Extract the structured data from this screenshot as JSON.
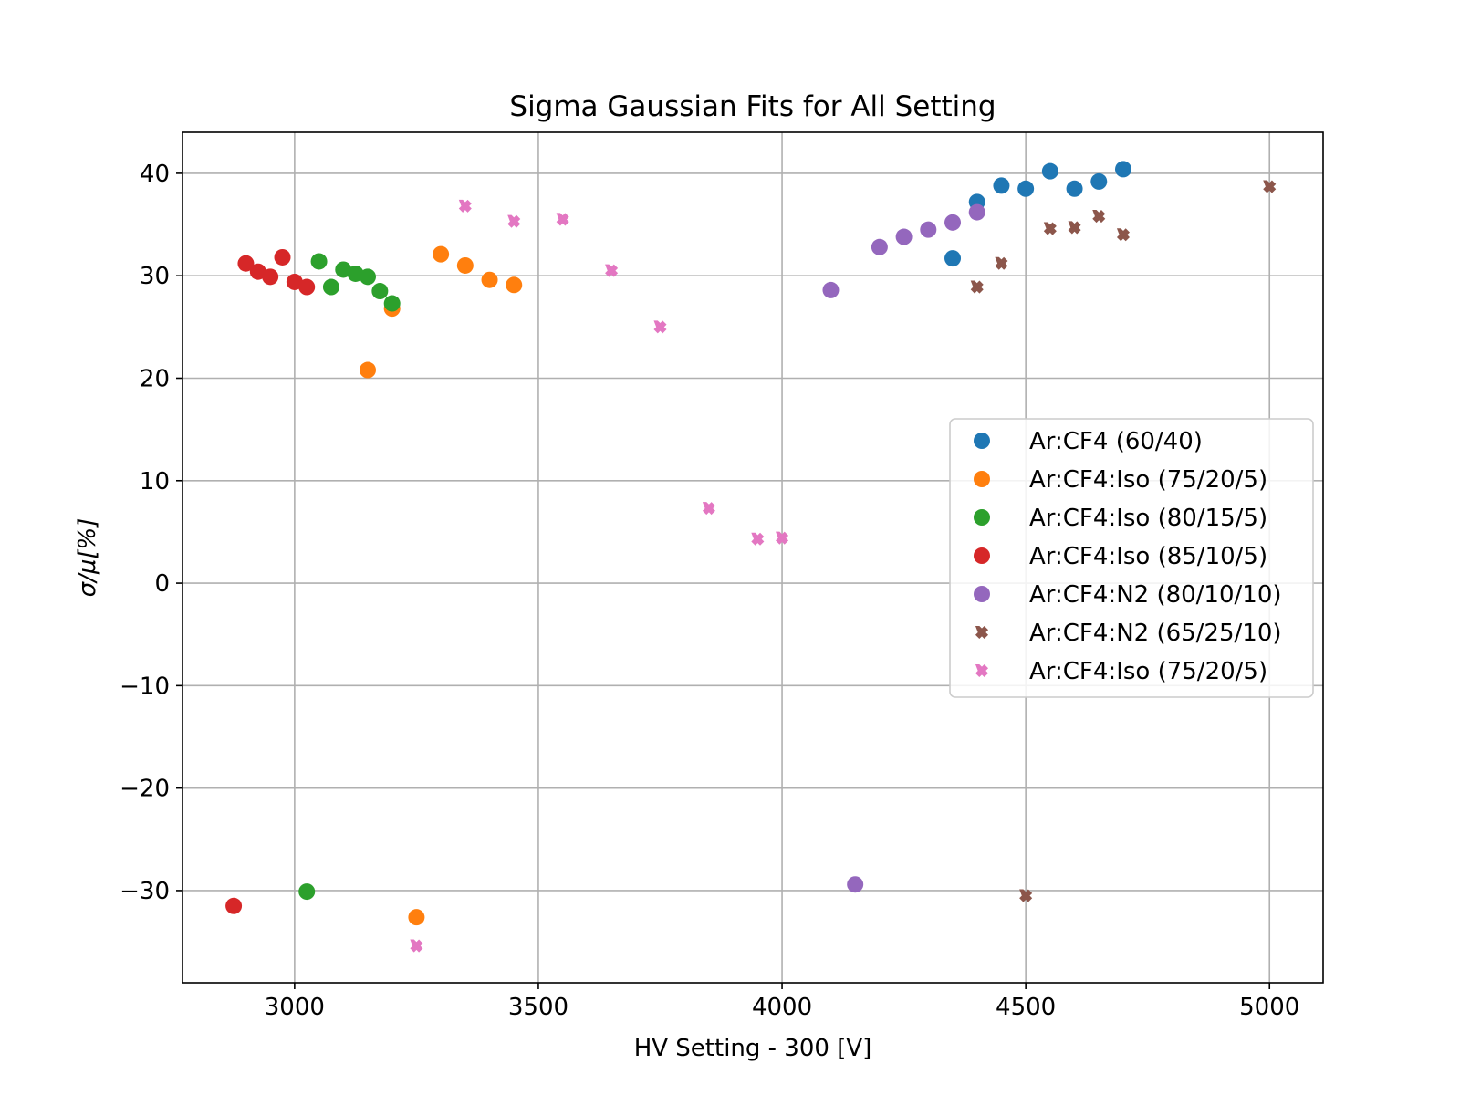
{
  "chart_data": {
    "type": "scatter",
    "title": "Sigma Gaussian Fits for All Setting",
    "xlabel": "HV Setting - 300 [V]",
    "ylabel": "σ/μ[%]",
    "xlim": [
      2770,
      5110
    ],
    "ylim": [
      -39,
      44
    ],
    "xticks": [
      3000,
      3500,
      4000,
      4500,
      5000
    ],
    "yticks": [
      -30,
      -20,
      -10,
      0,
      10,
      20,
      30,
      40
    ],
    "ytick_labels": [
      "−30",
      "−20",
      "−10",
      "0",
      "10",
      "20",
      "30",
      "40"
    ],
    "grid": true,
    "legend_position": "center-right",
    "series": [
      {
        "name": "Ar:CF4 (60/40)",
        "marker": "circle",
        "color": "#1f77b4",
        "points": [
          [
            4350,
            31.7
          ],
          [
            4400,
            37.2
          ],
          [
            4450,
            38.8
          ],
          [
            4500,
            38.5
          ],
          [
            4550,
            40.2
          ],
          [
            4600,
            38.5
          ],
          [
            4650,
            39.2
          ],
          [
            4700,
            40.4
          ]
        ]
      },
      {
        "name": "Ar:CF4:Iso (75/20/5)",
        "marker": "circle",
        "color": "#ff7f0e",
        "points": [
          [
            3150,
            20.8
          ],
          [
            3200,
            26.8
          ],
          [
            3250,
            -32.6
          ],
          [
            3300,
            32.1
          ],
          [
            3350,
            31.0
          ],
          [
            3400,
            29.6
          ],
          [
            3450,
            29.1
          ]
        ]
      },
      {
        "name": "Ar:CF4:Iso (80/15/5)",
        "marker": "circle",
        "color": "#2ca02c",
        "points": [
          [
            3025,
            -30.1
          ],
          [
            3050,
            31.4
          ],
          [
            3075,
            28.9
          ],
          [
            3100,
            30.6
          ],
          [
            3125,
            30.2
          ],
          [
            3150,
            29.9
          ],
          [
            3175,
            28.5
          ],
          [
            3200,
            27.3
          ]
        ]
      },
      {
        "name": "Ar:CF4:Iso (85/10/5)",
        "marker": "circle",
        "color": "#d62728",
        "points": [
          [
            2875,
            -31.5
          ],
          [
            2900,
            31.2
          ],
          [
            2925,
            30.4
          ],
          [
            2950,
            29.9
          ],
          [
            2975,
            31.8
          ],
          [
            3000,
            29.4
          ],
          [
            3025,
            28.9
          ]
        ]
      },
      {
        "name": "Ar:CF4:N2 (80/10/10)",
        "marker": "circle",
        "color": "#9467bd",
        "points": [
          [
            4100,
            28.6
          ],
          [
            4150,
            -29.4
          ],
          [
            4200,
            32.8
          ],
          [
            4250,
            33.8
          ],
          [
            4300,
            34.5
          ],
          [
            4350,
            35.2
          ],
          [
            4400,
            36.2
          ]
        ]
      },
      {
        "name": "Ar:CF4:N2 (65/25/10)",
        "marker": "x",
        "color": "#8c564b",
        "points": [
          [
            4400,
            28.9
          ],
          [
            4450,
            31.2
          ],
          [
            4500,
            -30.5
          ],
          [
            4550,
            34.6
          ],
          [
            4600,
            34.7
          ],
          [
            4650,
            35.8
          ],
          [
            4700,
            34.0
          ],
          [
            5000,
            38.7
          ]
        ]
      },
      {
        "name": "Ar:CF4:Iso (75/20/5)",
        "marker": "x",
        "color": "#e377c2",
        "points": [
          [
            3250,
            -35.4
          ],
          [
            3350,
            36.8
          ],
          [
            3450,
            35.3
          ],
          [
            3550,
            35.5
          ],
          [
            3650,
            30.5
          ],
          [
            3750,
            25.0
          ],
          [
            3850,
            7.3
          ],
          [
            3950,
            4.3
          ],
          [
            4000,
            4.4
          ]
        ]
      }
    ]
  }
}
